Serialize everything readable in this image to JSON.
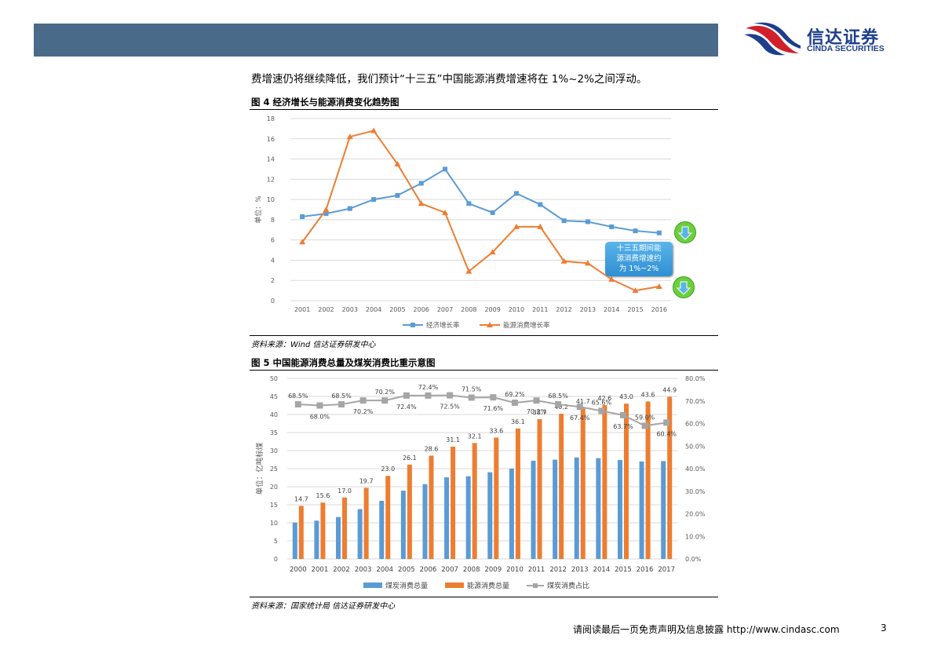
{
  "header": {
    "logo_cn": "信达证券",
    "logo_en": "CINDA SECURITIES",
    "brand_colors": {
      "bar": "#4a6a8a",
      "logo_red": "#d0202a",
      "logo_blue": "#1c3f8c"
    }
  },
  "intro_text": "费增速仍将继续降低，我们预计“十三五”中国能源消费增速将在 1%~2%之间浮动。",
  "figure4": {
    "title": "图 4 经济增长与能源消费变化趋势图",
    "source": "资料来源：Wind 信达证券研发中心",
    "callout_text": [
      "十三五期间能",
      "源消费增速约",
      "为 1%~2%"
    ]
  },
  "figure5": {
    "title": "图 5 中国能源消费总量及煤炭消费比重示意图",
    "source": "资料来源：国家统计局 信达证券研发中心"
  },
  "footer": {
    "disclaimer": "请阅读最后一页免责声明及信息披露 http://www.cindasc.com",
    "page_number": "3"
  },
  "chart_data": [
    {
      "type": "line",
      "ylabel": "单位：%",
      "ylim": [
        0,
        18
      ],
      "y_ticks": [
        0,
        2,
        4,
        6,
        8,
        10,
        12,
        14,
        16,
        18
      ],
      "categories": [
        "2001",
        "2002",
        "2003",
        "2004",
        "2005",
        "2006",
        "2007",
        "2008",
        "2009",
        "2010",
        "2011",
        "2012",
        "2013",
        "2014",
        "2015",
        "2016"
      ],
      "grid": true,
      "legend_position": "bottom",
      "series": [
        {
          "name": "经济增长率",
          "color": "#5b9bd5",
          "marker": "square",
          "values": [
            8.3,
            8.6,
            9.1,
            10.0,
            10.4,
            11.6,
            13.0,
            9.6,
            8.7,
            10.6,
            9.5,
            7.9,
            7.8,
            7.3,
            6.9,
            6.7
          ]
        },
        {
          "name": "能源消费增长率",
          "color": "#ed7d31",
          "marker": "triangle",
          "values": [
            5.8,
            9.0,
            16.2,
            16.8,
            13.5,
            9.6,
            8.7,
            2.9,
            4.8,
            7.3,
            7.3,
            3.9,
            3.7,
            2.1,
            1.0,
            1.4
          ]
        }
      ]
    },
    {
      "type": "bar",
      "ylabel": "单位：亿吨标煤",
      "ylim": [
        0,
        50
      ],
      "y_ticks": [
        0,
        5,
        10,
        15,
        20,
        25,
        30,
        35,
        40,
        45,
        50
      ],
      "y2lim": [
        0,
        80
      ],
      "y2_ticks": [
        "0.0%",
        "10.0%",
        "20.0%",
        "30.0%",
        "40.0%",
        "50.0%",
        "60.0%",
        "70.0%",
        "80.0%"
      ],
      "categories": [
        "2000",
        "2001",
        "2002",
        "2003",
        "2004",
        "2005",
        "2006",
        "2007",
        "2008",
        "2009",
        "2010",
        "2011",
        "2012",
        "2013",
        "2014",
        "2015",
        "2016",
        "2017"
      ],
      "grid": true,
      "legend_position": "bottom",
      "series": [
        {
          "name": "煤炭消费总量",
          "color": "#5b9bd5",
          "values": [
            10.1,
            10.6,
            11.6,
            13.8,
            16.1,
            18.9,
            20.7,
            22.6,
            22.9,
            24.0,
            25.0,
            27.2,
            27.5,
            28.1,
            27.9,
            27.4,
            27.0,
            27.1
          ]
        },
        {
          "name": "能源消费总量",
          "color": "#ed7d31",
          "values": [
            14.7,
            15.6,
            17.0,
            19.7,
            23.0,
            26.1,
            28.6,
            31.1,
            32.1,
            33.6,
            36.1,
            38.7,
            40.2,
            41.7,
            42.6,
            43.0,
            43.6,
            44.9
          ],
          "labels": [
            "14.7",
            "15.6",
            "17.0",
            "19.7",
            "23.0",
            "26.1",
            "28.6",
            "31.1",
            "32.1",
            "33.6",
            "36.1",
            "38.7",
            "40.2",
            "41.7",
            "42.6",
            "43.0",
            "43.6",
            "44.9"
          ]
        },
        {
          "name": "煤炭消费占比",
          "color": "#a5a5a5",
          "axis": "right",
          "values": [
            68.5,
            68.0,
            68.5,
            70.2,
            70.2,
            72.4,
            72.4,
            72.5,
            71.5,
            71.6,
            69.2,
            70.2,
            68.5,
            67.4,
            65.6,
            63.7,
            59.0,
            60.4
          ],
          "labels": [
            "68.5%",
            "68.0%",
            "68.5%",
            "70.2%",
            "70.2%",
            "72.4%",
            "72.4%",
            "72.5%",
            "71.5%",
            "71.6%",
            "69.2%",
            "70.2%",
            "68.5%",
            "67.4%",
            "65.6%",
            "63.7%",
            "59.0%",
            "60.4%"
          ]
        }
      ]
    }
  ]
}
